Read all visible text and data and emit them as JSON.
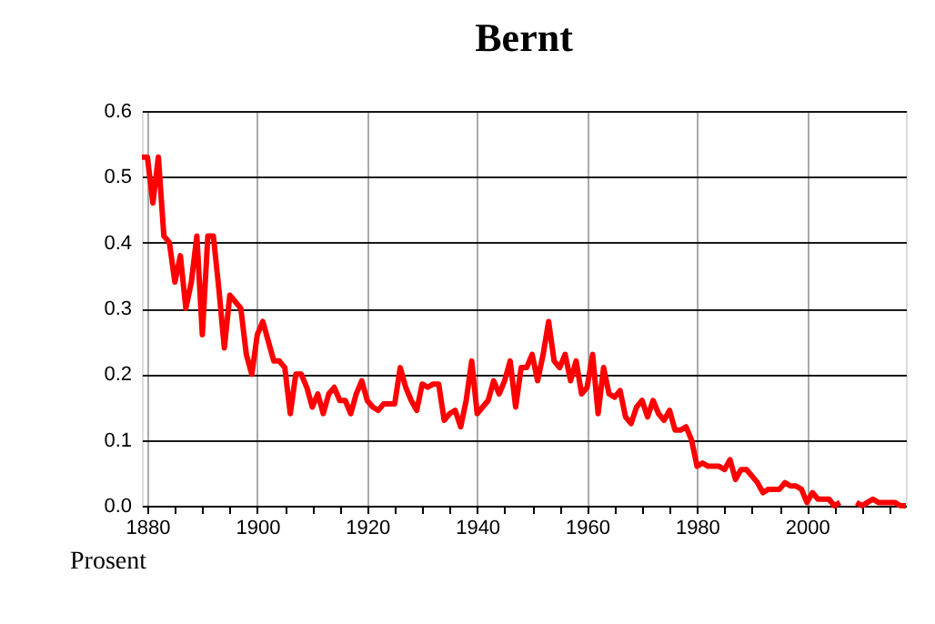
{
  "chart_data": {
    "type": "line",
    "title": "Bernt",
    "ylabel": "Prosent",
    "x": [
      1879,
      1880,
      1881,
      1882,
      1883,
      1884,
      1885,
      1886,
      1887,
      1888,
      1889,
      1890,
      1891,
      1892,
      1893,
      1894,
      1895,
      1896,
      1897,
      1898,
      1899,
      1900,
      1901,
      1902,
      1903,
      1904,
      1905,
      1906,
      1907,
      1908,
      1909,
      1910,
      1911,
      1912,
      1913,
      1914,
      1915,
      1916,
      1917,
      1918,
      1919,
      1920,
      1921,
      1922,
      1923,
      1924,
      1925,
      1926,
      1927,
      1928,
      1929,
      1930,
      1931,
      1932,
      1933,
      1934,
      1935,
      1936,
      1937,
      1938,
      1939,
      1940,
      1941,
      1942,
      1943,
      1944,
      1945,
      1946,
      1947,
      1948,
      1949,
      1950,
      1951,
      1952,
      1953,
      1954,
      1955,
      1956,
      1957,
      1958,
      1959,
      1960,
      1961,
      1962,
      1963,
      1964,
      1965,
      1966,
      1967,
      1968,
      1969,
      1970,
      1971,
      1972,
      1973,
      1974,
      1975,
      1976,
      1977,
      1978,
      1979,
      1980,
      1981,
      1982,
      1983,
      1984,
      1985,
      1986,
      1987,
      1988,
      1989,
      1990,
      1991,
      1992,
      1993,
      1994,
      1995,
      1996,
      1997,
      1998,
      1999,
      2000,
      2001,
      2002,
      2003,
      2004,
      2005,
      2006,
      2007,
      2008,
      2009,
      2010,
      2011,
      2012,
      2013,
      2014,
      2015,
      2016,
      2017,
      2018
    ],
    "series": [
      {
        "color": "#ff0000",
        "values": [
          0.53,
          0.53,
          0.46,
          0.53,
          0.41,
          0.4,
          0.34,
          0.38,
          0.3,
          0.34,
          0.41,
          0.26,
          0.41,
          0.41,
          0.33,
          0.24,
          0.32,
          0.31,
          0.3,
          0.23,
          0.2,
          0.26,
          0.28,
          0.25,
          0.22,
          0.22,
          0.21,
          0.14,
          0.2,
          0.2,
          0.18,
          0.15,
          0.17,
          0.14,
          0.17,
          0.18,
          0.16,
          0.16,
          0.14,
          0.17,
          0.19,
          0.16,
          0.15,
          0.145,
          0.155,
          0.155,
          0.155,
          0.21,
          0.18,
          0.16,
          0.145,
          0.185,
          0.18,
          0.185,
          0.185,
          0.13,
          0.14,
          0.145,
          0.12,
          0.16,
          0.22,
          0.14,
          0.15,
          0.16,
          0.19,
          0.17,
          0.19,
          0.22,
          0.15,
          0.21,
          0.21,
          0.23,
          0.19,
          0.23,
          0.28,
          0.22,
          0.21,
          0.23,
          0.19,
          0.22,
          0.17,
          0.18,
          0.23,
          0.14,
          0.21,
          0.17,
          0.165,
          0.175,
          0.135,
          0.125,
          0.15,
          0.16,
          0.135,
          0.16,
          0.14,
          0.13,
          0.145,
          0.115,
          0.115,
          0.12,
          0.1,
          0.06,
          0.065,
          0.06,
          0.06,
          0.06,
          0.055,
          0.07,
          0.04,
          0.055,
          0.055,
          0.045,
          0.035,
          0.02,
          0.025,
          0.025,
          0.025,
          0.035,
          0.03,
          0.03,
          0.025,
          0.005,
          0.02,
          0.01,
          0.01,
          0.01,
          0.0,
          0.005,
          null,
          null,
          0.005,
          0.0,
          0.005,
          0.01,
          0.005,
          0.005,
          0.005,
          0.005,
          0.0,
          0.0
        ]
      }
    ],
    "xlim": [
      1879,
      2018
    ],
    "xticks": [
      1880,
      {
        "value": 1885,
        "label": null
      },
      {
        "value": 1890,
        "label": null
      },
      {
        "value": 1895,
        "label": null
      },
      1900,
      {
        "value": 1905,
        "label": null
      },
      {
        "value": 1910,
        "label": null
      },
      {
        "value": 1915,
        "label": null
      },
      1920,
      {
        "value": 1925,
        "label": null
      },
      {
        "value": 1930,
        "label": null
      },
      {
        "value": 1935,
        "label": null
      },
      1940,
      {
        "value": 1945,
        "label": null
      },
      {
        "value": 1950,
        "label": null
      },
      {
        "value": 1955,
        "label": null
      },
      1960,
      {
        "value": 1965,
        "label": null
      },
      {
        "value": 1970,
        "label": null
      },
      {
        "value": 1975,
        "label": null
      },
      1980,
      {
        "value": 1985,
        "label": null
      },
      {
        "value": 1990,
        "label": null
      },
      {
        "value": 1995,
        "label": null
      },
      2000,
      {
        "value": 2005,
        "label": null
      },
      {
        "value": 2010,
        "label": null
      },
      {
        "value": 2015,
        "label": null
      }
    ],
    "ylim": [
      0,
      0.6
    ],
    "yticks": [
      {
        "value": 0,
        "label": "0.0"
      },
      0.1,
      0.2,
      0.3,
      0.4,
      0.5,
      0.6
    ],
    "grid": true,
    "marker": "none",
    "line_style": "solid"
  }
}
